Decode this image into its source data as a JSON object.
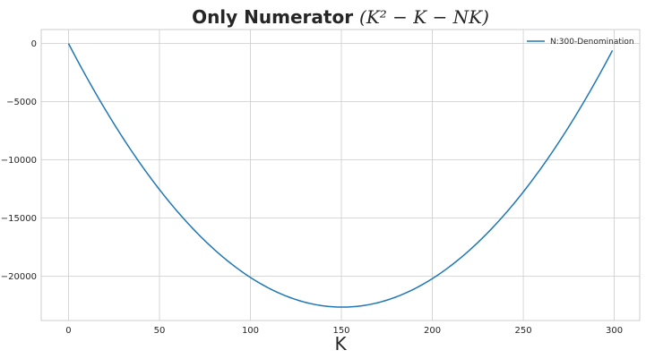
{
  "chart_data": {
    "type": "line",
    "title_main": "Only Numerator ",
    "title_math": "(K² − K − NK)",
    "xlabel": "K",
    "ylabel": "",
    "xlim": [
      -15,
      314
    ],
    "ylim": [
      -23800,
      1200
    ],
    "xticks": [
      0,
      50,
      100,
      150,
      200,
      250,
      300
    ],
    "yticks": [
      0,
      -5000,
      -10000,
      -15000,
      -20000
    ],
    "xtick_labels": [
      "0",
      "50",
      "100",
      "150",
      "200",
      "250",
      "300"
    ],
    "ytick_labels": [
      "0",
      "−5000",
      "−10000",
      "−15000",
      "−20000"
    ],
    "grid": true,
    "legend_position": "top-right",
    "series": [
      {
        "name": "N:300-Denomination",
        "color": "#1f77b4",
        "formula": "K^2 - K - 300K",
        "x_start": 0,
        "x_end": 299,
        "x_step": 1
      }
    ]
  }
}
